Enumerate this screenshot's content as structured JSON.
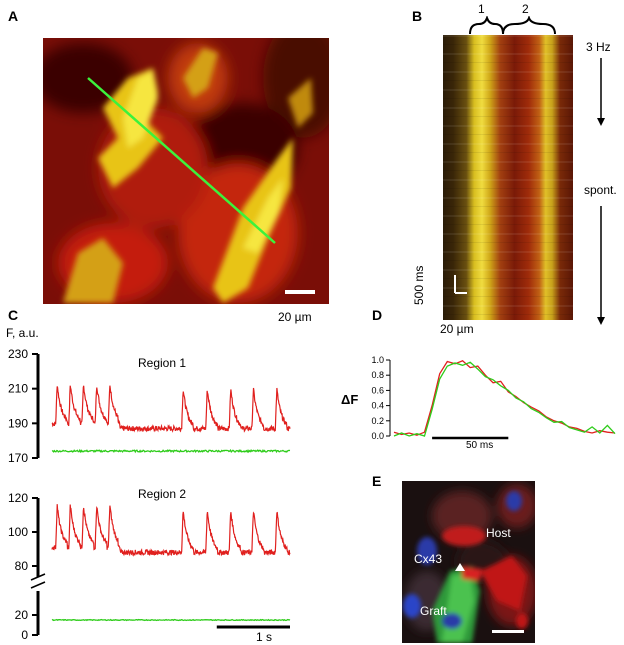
{
  "panels": {
    "A": {
      "label": "A",
      "scale_bar": "20 µm"
    },
    "B": {
      "label": "B",
      "roi_1": "1",
      "roi_2": "2",
      "stim": "3 Hz",
      "spont": "spont.",
      "time_bar": "500 ms",
      "space_bar": "20 µm"
    },
    "C": {
      "label": "C",
      "y_unit": "F, a.u.",
      "region1_title": "Region 1",
      "region2_title": "Region 2",
      "ticks_top": [
        "230",
        "210",
        "190",
        "170"
      ],
      "ticks_bottom": [
        "120",
        "100",
        "80",
        "20",
        "0"
      ],
      "time_bar": "1 s"
    },
    "D": {
      "label": "D",
      "y_label": "ΔF",
      "ticks": [
        "1.0",
        "0.8",
        "0.6",
        "0.4",
        "0.2",
        "0.0"
      ],
      "time_bar": "50 ms"
    },
    "E": {
      "label": "E",
      "host": "Host",
      "cx43": "Cx43",
      "graft": "Graft"
    }
  },
  "chart_data": [
    {
      "type": "line",
      "title": "Region 1",
      "ylabel": "F, a.u.",
      "ylim": [
        170,
        230
      ],
      "series": [
        {
          "color": "#e0201e",
          "baseline": 187,
          "peak": 210,
          "spike_times_s": [
            0.05,
            0.23,
            0.41,
            0.59,
            0.77,
            1.77,
            2.1,
            2.42,
            2.73,
            3.05
          ]
        },
        {
          "color": "#2ecc1a",
          "baseline": 174
        }
      ]
    },
    {
      "type": "line",
      "title": "Region 2",
      "ylabel": "F, a.u.",
      "ylim": [
        0,
        120
      ],
      "series": [
        {
          "color": "#e0201e",
          "baseline": 88,
          "peak": 113,
          "spike_times_s": [
            0.05,
            0.23,
            0.41,
            0.59,
            0.77,
            1.77,
            2.1,
            2.42,
            2.73,
            3.05
          ]
        },
        {
          "color": "#2ecc1a",
          "baseline": 15
        }
      ]
    },
    {
      "type": "line",
      "ylabel": "ΔF",
      "ylim": [
        0.0,
        1.0
      ],
      "x_ms": [
        0,
        5,
        10,
        15,
        20,
        25,
        30,
        35,
        40,
        45,
        50,
        55,
        60,
        65,
        70,
        75,
        80,
        85,
        90,
        95,
        100,
        105,
        110,
        115,
        120,
        125,
        130,
        135,
        140,
        145
      ],
      "series": [
        {
          "color": "#e0201e",
          "values": [
            0.05,
            0.02,
            0.04,
            0.01,
            0.05,
            0.4,
            0.82,
            0.98,
            0.95,
            0.99,
            0.9,
            0.92,
            0.8,
            0.7,
            0.72,
            0.58,
            0.52,
            0.44,
            0.38,
            0.33,
            0.25,
            0.2,
            0.17,
            0.12,
            0.1,
            0.06,
            0.04,
            0.07,
            0.05,
            0.04
          ]
        },
        {
          "color": "#2ecc1a",
          "values": [
            0.0,
            0.04,
            0.0,
            0.03,
            0.0,
            0.35,
            0.75,
            0.92,
            0.96,
            0.93,
            0.97,
            0.88,
            0.78,
            0.74,
            0.66,
            0.6,
            0.5,
            0.45,
            0.36,
            0.31,
            0.24,
            0.18,
            0.19,
            0.11,
            0.08,
            0.05,
            0.12,
            0.04,
            0.14,
            0.03
          ]
        }
      ]
    }
  ]
}
